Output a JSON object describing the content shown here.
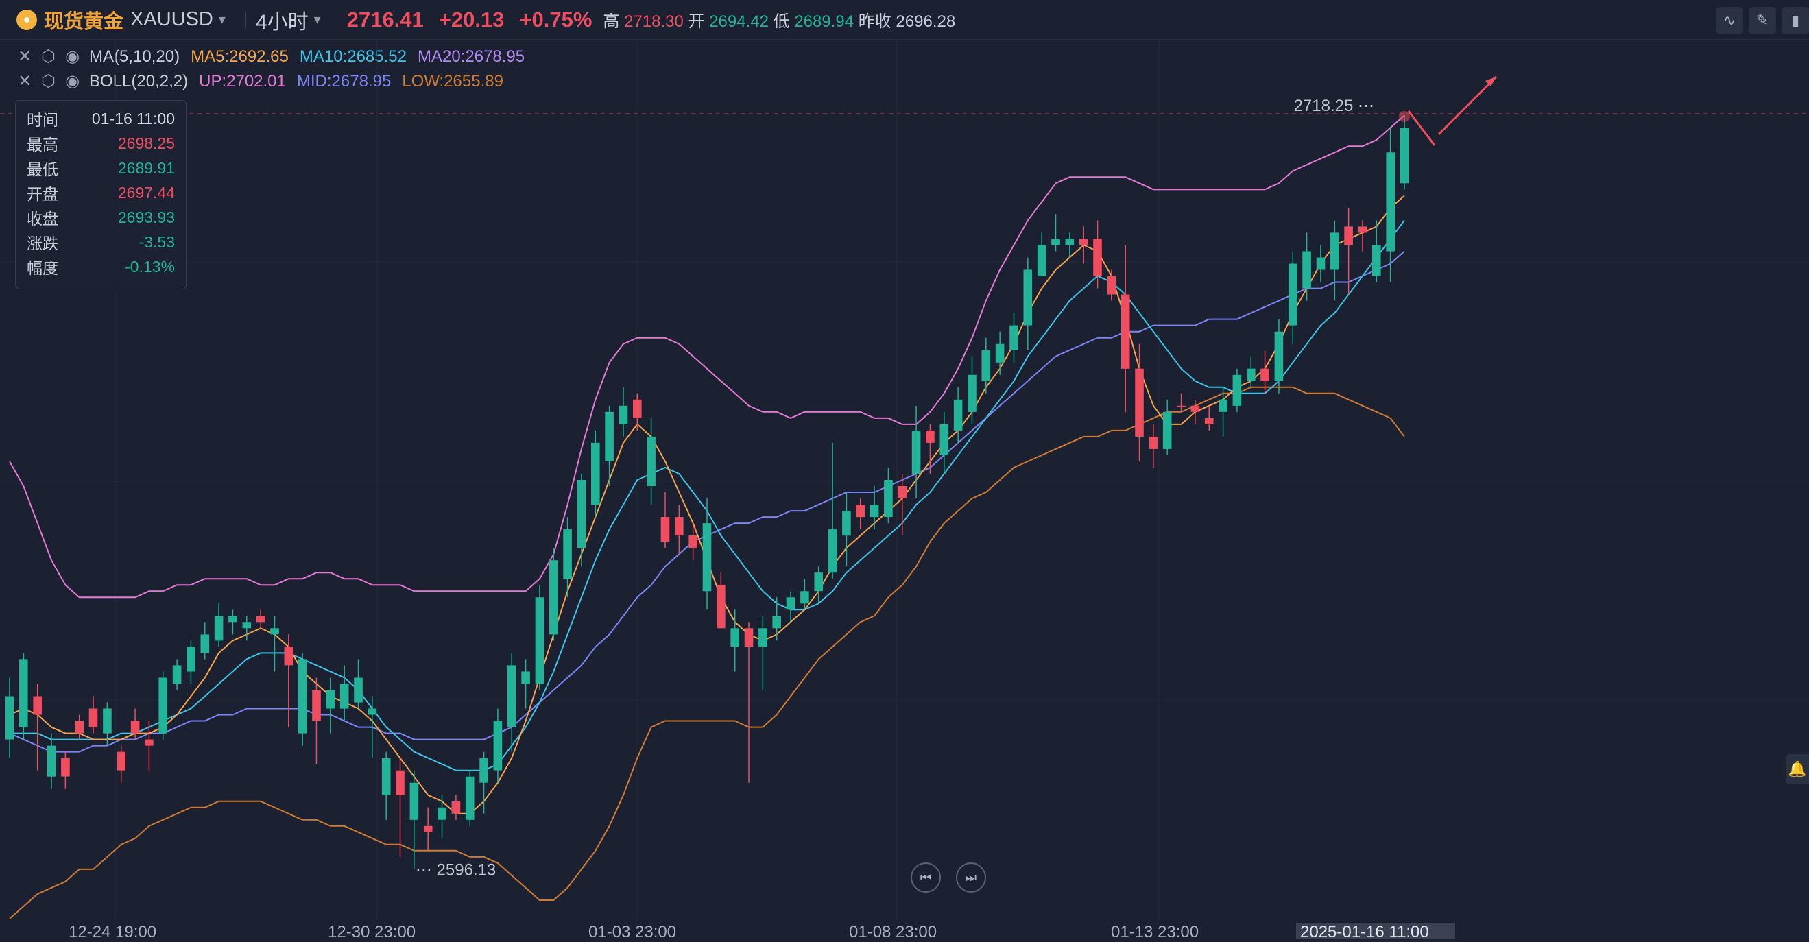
{
  "header": {
    "symbol_cn": "现货黄金",
    "symbol_code": "XAUUSD",
    "timeframe": "4小时",
    "last_price": "2716.41",
    "change": "+20.13",
    "change_pct": "+0.75%",
    "high_label": "高",
    "high": "2718.30",
    "open_label": "开",
    "open": "2694.42",
    "low_label": "低",
    "low": "2689.94",
    "prev_close_label": "昨收",
    "prev_close": "2696.28"
  },
  "indicators": {
    "ma": {
      "name": "MA(5,10,20)",
      "ma5": "MA5:2692.65",
      "ma10": "MA10:2685.52",
      "ma20": "MA20:2678.95"
    },
    "boll": {
      "name": "BOLL(20,2,2)",
      "up": "UP:2702.01",
      "mid": "MID:2678.95",
      "low": "LOW:2655.89"
    }
  },
  "tooltip": {
    "time_label": "时间",
    "time": "01-16 11:00",
    "high_label": "最高",
    "high": "2698.25",
    "low_label": "最低",
    "low": "2689.91",
    "open_label": "开盘",
    "open": "2697.44",
    "close_label": "收盘",
    "close": "2693.93",
    "chg_label": "涨跌",
    "chg": "-3.53",
    "amp_label": "幅度",
    "amp": "-0.13%"
  },
  "colors": {
    "up": "#ef4e61",
    "down": "#22b398",
    "ma5": "#f6a44e",
    "ma10": "#3fc3e7",
    "ma20": "#7d86f7",
    "boll_up": "#e47ad6",
    "boll_low": "#cf7b34"
  },
  "x_axis": {
    "labels": [
      "12-24 19:00",
      "12-30 23:00",
      "01-03 23:00",
      "01-08 23:00",
      "01-13 23:00"
    ],
    "current": "2025-01-16 11:00"
  },
  "chart_data": {
    "type": "candlestick",
    "title": "",
    "ylim": [
      2588,
      2730
    ],
    "max_label": "2718.25",
    "min_label": "2596.13",
    "candles": [
      [
        2624,
        2617,
        2627,
        2614
      ],
      [
        2630,
        2619,
        2631,
        2617
      ],
      [
        2621,
        2624,
        2626,
        2612
      ],
      [
        2616,
        2611,
        2618,
        2609
      ],
      [
        2611,
        2614,
        2615,
        2609
      ],
      [
        2618,
        2620,
        2621,
        2617
      ],
      [
        2619,
        2622,
        2624,
        2618
      ],
      [
        2622,
        2618,
        2623,
        2616
      ],
      [
        2612,
        2615,
        2616,
        2610
      ],
      [
        2618,
        2620,
        2622,
        2617
      ],
      [
        2616,
        2617,
        2620,
        2612
      ],
      [
        2627,
        2618,
        2628,
        2617
      ],
      [
        2629,
        2626,
        2630,
        2625
      ],
      [
        2632,
        2628,
        2633,
        2626
      ],
      [
        2634,
        2631,
        2636,
        2630
      ],
      [
        2637,
        2633,
        2639,
        2632
      ],
      [
        2637,
        2636,
        2638,
        2634
      ],
      [
        2636,
        2635,
        2637,
        2633
      ],
      [
        2636,
        2637,
        2638,
        2635
      ],
      [
        2635,
        2634,
        2637,
        2628
      ],
      [
        2629,
        2632,
        2634,
        2619
      ],
      [
        2630,
        2618,
        2631,
        2616
      ],
      [
        2620,
        2625,
        2627,
        2613
      ],
      [
        2625,
        2622,
        2627,
        2618
      ],
      [
        2626,
        2622,
        2629,
        2620
      ],
      [
        2627,
        2623,
        2630,
        2622
      ],
      [
        2622,
        2621,
        2624,
        2614
      ],
      [
        2614,
        2608,
        2615,
        2604
      ],
      [
        2608,
        2612,
        2614,
        2598
      ],
      [
        2610,
        2604,
        2612,
        2596
      ],
      [
        2602,
        2603,
        2606,
        2599
      ],
      [
        2606,
        2604,
        2608,
        2601
      ],
      [
        2605,
        2607,
        2608,
        2604
      ],
      [
        2611,
        2604,
        2612,
        2603
      ],
      [
        2614,
        2610,
        2615,
        2605
      ],
      [
        2620,
        2612,
        2622,
        2610
      ],
      [
        2629,
        2619,
        2631,
        2615
      ],
      [
        2628,
        2626,
        2630,
        2622
      ],
      [
        2640,
        2626,
        2642,
        2625
      ],
      [
        2646,
        2634,
        2648,
        2633
      ],
      [
        2651,
        2643,
        2653,
        2640
      ],
      [
        2659,
        2648,
        2660,
        2645
      ],
      [
        2665,
        2655,
        2667,
        2653
      ],
      [
        2670,
        2662,
        2671,
        2658
      ],
      [
        2671,
        2668,
        2674,
        2666
      ],
      [
        2669,
        2672,
        2673,
        2667
      ],
      [
        2666,
        2658,
        2669,
        2655
      ],
      [
        2649,
        2653,
        2657,
        2648
      ],
      [
        2650,
        2653,
        2655,
        2647
      ],
      [
        2648,
        2650,
        2652,
        2646
      ],
      [
        2652,
        2641,
        2656,
        2638
      ],
      [
        2635,
        2642,
        2644,
        2635
      ],
      [
        2635,
        2632,
        2638,
        2628
      ],
      [
        2632,
        2635,
        2636,
        2610
      ],
      [
        2635,
        2632,
        2637,
        2625
      ],
      [
        2637,
        2635,
        2640,
        2633
      ],
      [
        2640,
        2638,
        2641,
        2636
      ],
      [
        2641,
        2639,
        2643,
        2638
      ],
      [
        2644,
        2641,
        2645,
        2639
      ],
      [
        2651,
        2644,
        2665,
        2643
      ],
      [
        2654,
        2650,
        2657,
        2645
      ],
      [
        2653,
        2655,
        2656,
        2651
      ],
      [
        2655,
        2653,
        2658,
        2651
      ],
      [
        2659,
        2653,
        2661,
        2652
      ],
      [
        2656,
        2658,
        2660,
        2650
      ],
      [
        2667,
        2660,
        2671,
        2656
      ],
      [
        2665,
        2667,
        2668,
        2660
      ],
      [
        2668,
        2663,
        2670,
        2660
      ],
      [
        2672,
        2667,
        2674,
        2665
      ],
      [
        2676,
        2670,
        2679,
        2668
      ],
      [
        2680,
        2675,
        2682,
        2673
      ],
      [
        2681,
        2678,
        2683,
        2676
      ],
      [
        2684,
        2680,
        2686,
        2678
      ],
      [
        2693,
        2684,
        2695,
        2680
      ],
      [
        2697,
        2692,
        2699,
        2694
      ],
      [
        2698,
        2697,
        2702,
        2696
      ],
      [
        2698,
        2697,
        2699,
        2695
      ],
      [
        2697,
        2698,
        2700,
        2694
      ],
      [
        2692,
        2698,
        2701,
        2690
      ],
      [
        2689,
        2692,
        2693,
        2688
      ],
      [
        2677,
        2689,
        2697,
        2670
      ],
      [
        2666,
        2677,
        2681,
        2662
      ],
      [
        2664,
        2666,
        2668,
        2661
      ],
      [
        2670,
        2664,
        2672,
        2663
      ],
      [
        2671,
        2671,
        2673,
        2670
      ],
      [
        2670,
        2671,
        2672,
        2668
      ],
      [
        2668,
        2669,
        2671,
        2667
      ],
      [
        2672,
        2670,
        2674,
        2666
      ],
      [
        2676,
        2671,
        2677,
        2670
      ],
      [
        2677,
        2675,
        2679,
        2674
      ],
      [
        2675,
        2677,
        2680,
        2673
      ],
      [
        2683,
        2675,
        2685,
        2673
      ],
      [
        2694,
        2684,
        2696,
        2681
      ],
      [
        2696,
        2690,
        2699,
        2688
      ],
      [
        2695,
        2693,
        2697,
        2691
      ],
      [
        2699,
        2693,
        2701,
        2688
      ],
      [
        2697,
        2700,
        2703,
        2689
      ],
      [
        2699,
        2700,
        2701,
        2696
      ],
      [
        2697,
        2692,
        2701,
        2691
      ],
      [
        2712,
        2696,
        2716,
        2691
      ],
      [
        2716,
        2707,
        2718,
        2706
      ]
    ],
    "ma5": [
      2621,
      2622,
      2621,
      2619,
      2618,
      2618,
      2617,
      2617,
      2617,
      2618,
      2618,
      2619,
      2621,
      2624,
      2627,
      2631,
      2633,
      2634,
      2635,
      2634,
      2632,
      2628,
      2626,
      2624,
      2623,
      2622,
      2620,
      2617,
      2614,
      2611,
      2608,
      2607,
      2605,
      2605,
      2607,
      2610,
      2614,
      2620,
      2627,
      2634,
      2641,
      2647,
      2653,
      2659,
      2665,
      2668,
      2666,
      2662,
      2657,
      2652,
      2646,
      2640,
      2636,
      2634,
      2633,
      2634,
      2636,
      2638,
      2641,
      2645,
      2648,
      2650,
      2652,
      2654,
      2656,
      2659,
      2662,
      2665,
      2667,
      2670,
      2674,
      2677,
      2681,
      2686,
      2690,
      2693,
      2695,
      2697,
      2696,
      2692,
      2685,
      2677,
      2671,
      2668,
      2668,
      2670,
      2671,
      2672,
      2674,
      2675,
      2677,
      2681,
      2686,
      2690,
      2694,
      2697,
      2698,
      2699,
      2700,
      2703,
      2705
    ],
    "ma10": [
      2618,
      2618,
      2618,
      2617,
      2617,
      2617,
      2617,
      2617,
      2618,
      2618,
      2619,
      2620,
      2621,
      2622,
      2624,
      2626,
      2628,
      2630,
      2631,
      2631,
      2631,
      2630,
      2629,
      2628,
      2627,
      2625,
      2622,
      2619,
      2617,
      2615,
      2614,
      2613,
      2612,
      2612,
      2612,
      2613,
      2616,
      2619,
      2623,
      2628,
      2634,
      2640,
      2646,
      2651,
      2655,
      2659,
      2660,
      2661,
      2660,
      2657,
      2654,
      2650,
      2647,
      2644,
      2641,
      2639,
      2638,
      2638,
      2639,
      2641,
      2644,
      2646,
      2648,
      2650,
      2652,
      2655,
      2657,
      2660,
      2663,
      2666,
      2669,
      2672,
      2675,
      2679,
      2682,
      2685,
      2688,
      2690,
      2692,
      2691,
      2689,
      2686,
      2683,
      2680,
      2677,
      2675,
      2674,
      2674,
      2673,
      2673,
      2673,
      2675,
      2678,
      2681,
      2684,
      2686,
      2689,
      2692,
      2695,
      2698,
      2701
    ],
    "ma20": [
      2618,
      2617,
      2616,
      2615,
      2615,
      2615,
      2616,
      2616,
      2617,
      2617,
      2618,
      2618,
      2619,
      2620,
      2620,
      2621,
      2621,
      2622,
      2622,
      2622,
      2622,
      2622,
      2621,
      2621,
      2620,
      2619,
      2619,
      2618,
      2618,
      2617,
      2617,
      2617,
      2617,
      2617,
      2617,
      2618,
      2619,
      2621,
      2623,
      2625,
      2627,
      2629,
      2632,
      2634,
      2637,
      2640,
      2642,
      2645,
      2647,
      2649,
      2650,
      2651,
      2652,
      2652,
      2653,
      2653,
      2654,
      2654,
      2655,
      2656,
      2657,
      2657,
      2657,
      2658,
      2659,
      2660,
      2661,
      2663,
      2665,
      2667,
      2669,
      2671,
      2673,
      2675,
      2677,
      2679,
      2680,
      2681,
      2682,
      2682,
      2683,
      2683,
      2684,
      2684,
      2684,
      2684,
      2685,
      2685,
      2685,
      2686,
      2687,
      2688,
      2689,
      2690,
      2690,
      2691,
      2691,
      2692,
      2693,
      2694,
      2696
    ],
    "boll_up": [
      2662,
      2658,
      2652,
      2646,
      2642,
      2640,
      2640,
      2640,
      2640,
      2640,
      2641,
      2641,
      2642,
      2642,
      2643,
      2643,
      2643,
      2643,
      2642,
      2642,
      2643,
      2643,
      2644,
      2644,
      2643,
      2643,
      2642,
      2642,
      2642,
      2641,
      2641,
      2641,
      2641,
      2641,
      2641,
      2641,
      2641,
      2641,
      2643,
      2647,
      2655,
      2664,
      2672,
      2678,
      2681,
      2682,
      2682,
      2682,
      2681,
      2679,
      2677,
      2675,
      2673,
      2671,
      2670,
      2670,
      2669,
      2670,
      2670,
      2670,
      2670,
      2670,
      2669,
      2669,
      2668,
      2668,
      2670,
      2673,
      2677,
      2682,
      2688,
      2693,
      2697,
      2701,
      2704,
      2707,
      2708,
      2708,
      2708,
      2708,
      2708,
      2707,
      2706,
      2706,
      2706,
      2706,
      2706,
      2706,
      2706,
      2706,
      2706,
      2707,
      2709,
      2710,
      2711,
      2712,
      2713,
      2713,
      2714,
      2716,
      2718
    ],
    "boll_low": [
      2588,
      2590,
      2592,
      2593,
      2594,
      2596,
      2596,
      2598,
      2600,
      2601,
      2603,
      2604,
      2605,
      2606,
      2606,
      2607,
      2607,
      2607,
      2607,
      2606,
      2605,
      2604,
      2604,
      2603,
      2603,
      2602,
      2601,
      2600,
      2600,
      2599,
      2599,
      2599,
      2599,
      2598,
      2598,
      2597,
      2595,
      2593,
      2591,
      2591,
      2593,
      2596,
      2599,
      2603,
      2608,
      2614,
      2619,
      2620,
      2620,
      2620,
      2620,
      2620,
      2620,
      2619,
      2619,
      2621,
      2624,
      2627,
      2630,
      2632,
      2634,
      2636,
      2637,
      2640,
      2642,
      2645,
      2649,
      2652,
      2654,
      2656,
      2657,
      2659,
      2661,
      2662,
      2663,
      2664,
      2665,
      2666,
      2666,
      2667,
      2667,
      2668,
      2669,
      2670,
      2670,
      2671,
      2672,
      2673,
      2673,
      2674,
      2674,
      2674,
      2674,
      2673,
      2673,
      2673,
      2672,
      2671,
      2670,
      2669,
      2666
    ]
  }
}
